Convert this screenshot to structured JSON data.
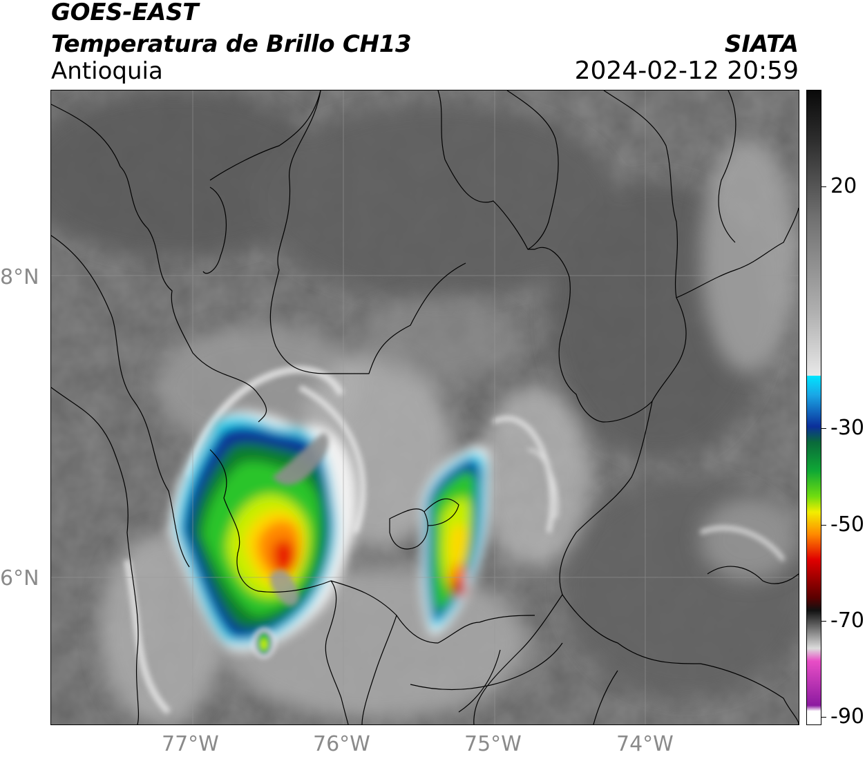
{
  "header": {
    "satellite": "GOES-EAST",
    "product": "Temperatura de Brillo CH13",
    "region": "Antioquia",
    "brand": "SIATA",
    "datetime": "2024-02-12 20:59"
  },
  "map": {
    "lat_labels": [
      "8°N",
      "6°N"
    ],
    "lon_labels": [
      "77°W",
      "76°W",
      "75°W",
      "74°W"
    ]
  },
  "colorbar": {
    "labels": [
      "20",
      "-30",
      "-50",
      "-70",
      "-90"
    ],
    "palette": {
      "warm_dark": "#1a1a1a",
      "warm_light": "#f2f2f2",
      "cyan": "#00e5ff",
      "blue": "#0b2f9a",
      "green": "#0fa835",
      "yellow": "#f2ee00",
      "orange": "#ff8a00",
      "red": "#e00000",
      "darkred": "#5a0000",
      "magenta": "#e84ec6",
      "purple": "#8c1aa0"
    }
  }
}
